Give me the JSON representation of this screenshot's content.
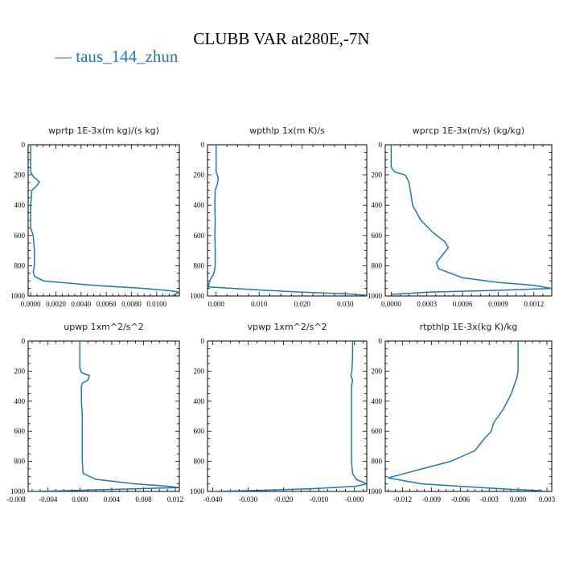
{
  "title": "CLUBB VAR at280E,-7N",
  "legend": {
    "label": "taus_144_zhun",
    "color": "#1f77b4"
  },
  "chart_data": [
    {
      "type": "line",
      "title": "wprtp  1E-3x(m kg)/(s kg)",
      "xlim": [
        -0.0002,
        0.0118
      ],
      "ylim": [
        1000,
        0
      ],
      "y_reversed": true,
      "xticks": [
        0.0,
        0.002,
        0.004,
        0.006,
        0.008,
        0.01
      ],
      "xticklabels": [
        "0.0000",
        "0.0020",
        "0.0040",
        "0.0060",
        "0.0080",
        "0.0100"
      ],
      "yticks": [
        0,
        200,
        400,
        600,
        800,
        1000
      ],
      "series": [
        {
          "x": [
            0.0,
            0.0,
            0.0,
            0.0002,
            0.0007,
            0.0004,
            0.0001,
            0.0,
            0.0,
            0.0,
            0.0002,
            0.0003,
            0.0003,
            0.0002,
            0.0003,
            0.001,
            0.005,
            0.009,
            0.011,
            0.0118,
            0.0112
          ],
          "y": [
            0,
            100,
            180,
            210,
            245,
            280,
            300,
            400,
            500,
            550,
            600,
            700,
            800,
            840,
            870,
            900,
            930,
            950,
            965,
            975,
            1000
          ]
        }
      ]
    },
    {
      "type": "line",
      "title": "wpthlp  1x(m K)/s",
      "xlim": [
        -0.002,
        0.035
      ],
      "ylim": [
        1000,
        0
      ],
      "y_reversed": true,
      "xticks": [
        0.0,
        0.01,
        0.02,
        0.03
      ],
      "xticklabels": [
        "0.000",
        "0.010",
        "0.020",
        "0.030"
      ],
      "yticks": [
        0,
        200,
        400,
        600,
        800,
        1000
      ],
      "series": [
        {
          "x": [
            0.0,
            0.0,
            0.0,
            0.0005,
            0.0003,
            -0.0002,
            -0.0003,
            -0.0002,
            -0.0003,
            -0.0002,
            -0.0002,
            -0.0005,
            -0.0015,
            -0.0018,
            0.01,
            0.02,
            0.03,
            0.035
          ],
          "y": [
            0,
            100,
            180,
            220,
            260,
            300,
            400,
            500,
            600,
            700,
            800,
            850,
            900,
            940,
            960,
            975,
            985,
            995
          ]
        }
      ]
    },
    {
      "type": "line",
      "title": "wprcp  1E-3x(m/s) (kg/kg)",
      "xlim": [
        -5e-05,
        0.00135
      ],
      "ylim": [
        1000,
        0
      ],
      "y_reversed": true,
      "xticks": [
        0.0,
        0.0003,
        0.0006,
        0.0009,
        0.0012
      ],
      "xticklabels": [
        "0.0000",
        "0.0003",
        "0.0006",
        "0.0009",
        "0.0012"
      ],
      "yticks": [
        0,
        200,
        400,
        600,
        800,
        1000
      ],
      "series": [
        {
          "x": [
            0.0,
            0.0,
            3e-05,
            0.00012,
            0.00015,
            0.00016,
            0.00018,
            0.00025,
            0.00035,
            0.00045,
            0.00048,
            0.00042,
            0.00038,
            0.0004,
            0.0006,
            0.0009,
            0.0012,
            0.00135,
            0.0008,
            0.0003,
            0.0
          ],
          "y": [
            0,
            150,
            180,
            200,
            250,
            300,
            400,
            500,
            580,
            640,
            680,
            740,
            780,
            820,
            880,
            910,
            930,
            950,
            965,
            975,
            990
          ]
        }
      ]
    },
    {
      "type": "line",
      "title": "upwp  1xm^2/s^2",
      "xlim": [
        -0.0065,
        0.0125
      ],
      "ylim": [
        1000,
        0
      ],
      "y_reversed": true,
      "xticks": [
        -0.008,
        -0.004,
        0.0,
        0.004,
        0.008,
        0.012
      ],
      "xticklabels": [
        "-0.008",
        "-0.004",
        "0.000",
        "0.004",
        "0.008",
        "0.012"
      ],
      "yticks": [
        0,
        200,
        400,
        600,
        800,
        1000
      ],
      "series": [
        {
          "x": [
            0.0,
            0.0,
            0.0,
            0.0002,
            0.0012,
            0.001,
            0.0003,
            0.0002,
            0.0002,
            0.0003,
            0.0003,
            0.0003,
            0.0003,
            0.0004,
            0.002,
            0.007,
            0.011,
            0.0125,
            0.005,
            -0.002,
            -0.006
          ],
          "y": [
            0,
            100,
            180,
            210,
            230,
            260,
            280,
            300,
            400,
            500,
            600,
            700,
            800,
            880,
            920,
            950,
            965,
            975,
            985,
            995,
            1000
          ]
        }
      ]
    },
    {
      "type": "line",
      "title": "vpwp  1xm^2/s^2",
      "xlim": [
        -0.0415,
        0.0035
      ],
      "ylim": [
        1000,
        0
      ],
      "y_reversed": true,
      "xticks": [
        -0.04,
        -0.03,
        -0.02,
        -0.01,
        0.0
      ],
      "xticklabels": [
        "-0.040",
        "-0.030",
        "-0.020",
        "-0.010",
        "-0.000"
      ],
      "yticks": [
        0,
        200,
        400,
        600,
        800,
        1000
      ],
      "series": [
        {
          "x": [
            -0.0005,
            -0.0005,
            -0.0007,
            -0.001,
            -0.0005,
            -0.0008,
            -0.0008,
            -0.0008,
            -0.0008,
            -0.0008,
            -0.0008,
            -0.0005,
            0.0005,
            0.0035,
            0.0005,
            -0.01,
            -0.025,
            -0.04
          ],
          "y": [
            0,
            100,
            200,
            230,
            260,
            300,
            400,
            500,
            600,
            700,
            800,
            880,
            920,
            950,
            965,
            980,
            992,
            1000
          ]
        }
      ]
    },
    {
      "type": "line",
      "title": "rtpthlp  1E-3x(kg K)/kg",
      "xlim": [
        -0.0138,
        0.0035
      ],
      "ylim": [
        1000,
        0
      ],
      "y_reversed": true,
      "xticks": [
        -0.012,
        -0.009,
        -0.006,
        -0.003,
        0.0,
        0.003
      ],
      "xticklabels": [
        "-0.012",
        "-0.009",
        "-0.006",
        "-0.003",
        "0.000",
        "0.003"
      ],
      "yticks": [
        0,
        200,
        400,
        600,
        800,
        1000
      ],
      "series": [
        {
          "x": [
            0.0,
            0.0,
            0.0,
            -0.0001,
            -0.0007,
            -0.0015,
            -0.0025,
            -0.0028,
            -0.0035,
            -0.0045,
            -0.007,
            -0.01,
            -0.0135,
            -0.01,
            -0.005,
            -0.001,
            0.0025
          ],
          "y": [
            0,
            100,
            200,
            240,
            350,
            450,
            540,
            600,
            650,
            730,
            800,
            850,
            910,
            950,
            970,
            985,
            995
          ]
        }
      ]
    }
  ]
}
